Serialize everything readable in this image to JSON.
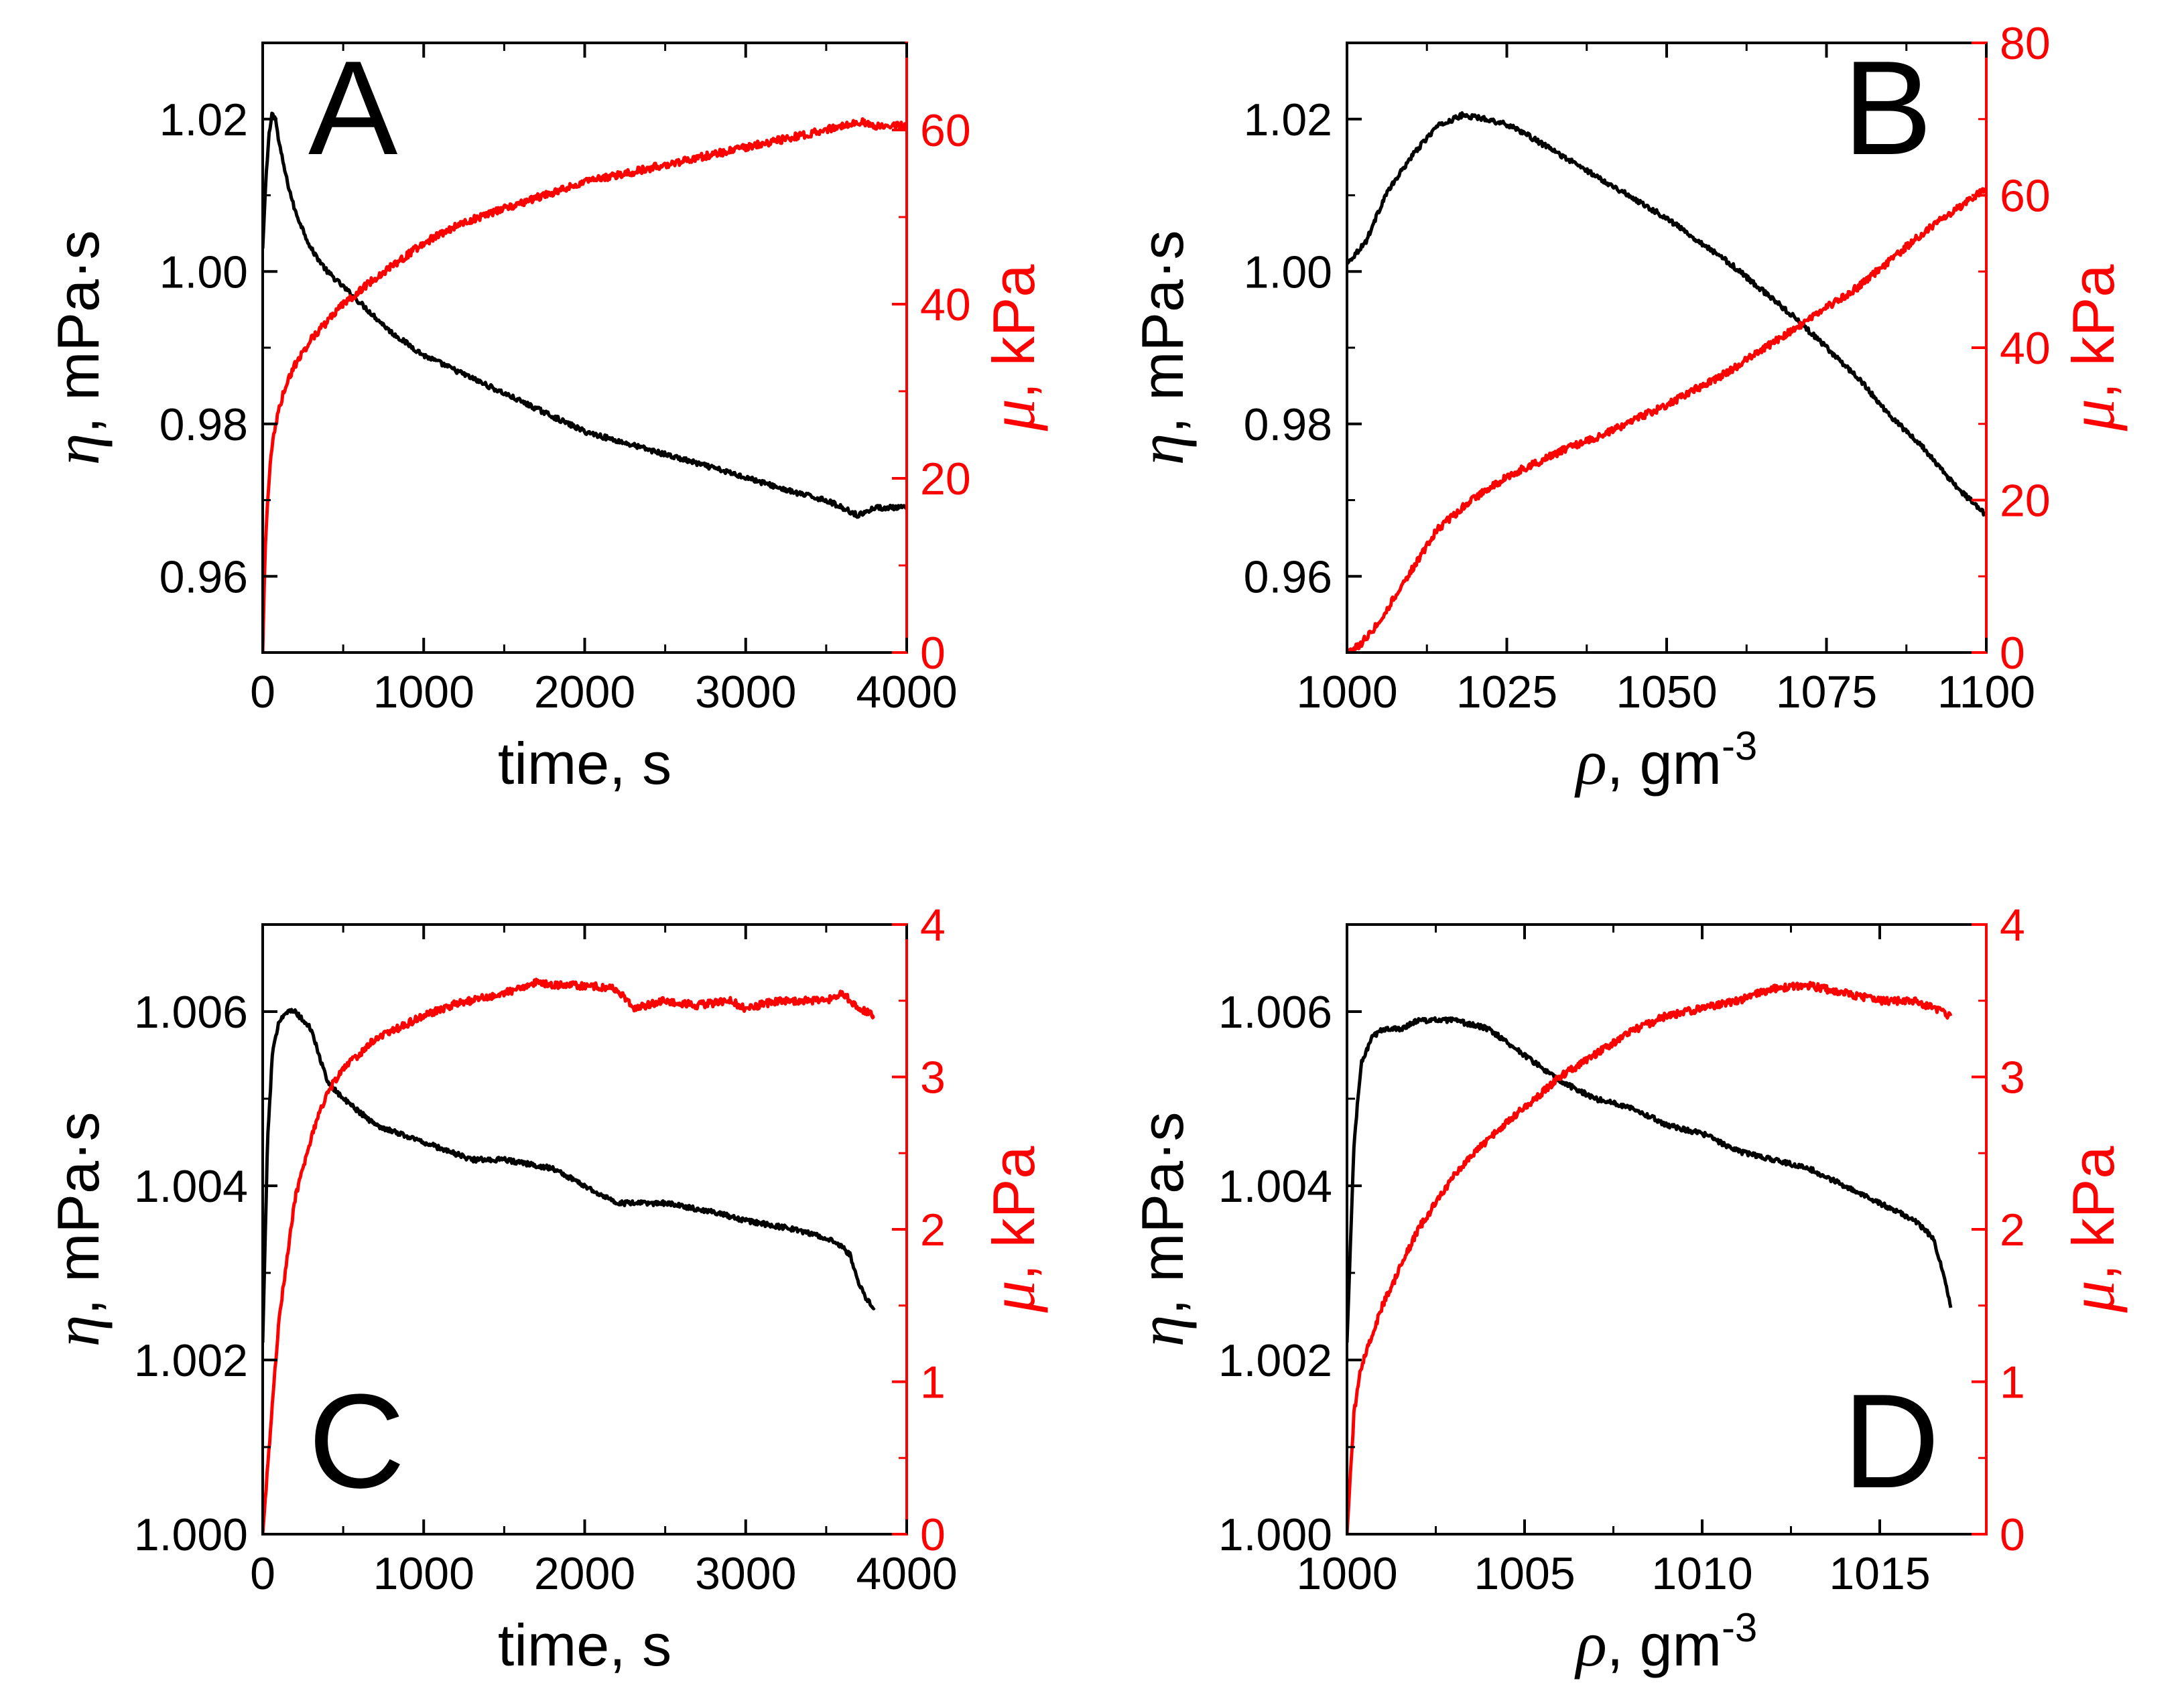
{
  "colors": {
    "eta": "#000000",
    "mu": "#ff0000",
    "axis": "#000000"
  },
  "chart_data": [
    {
      "panel": "A",
      "type": "line",
      "xlabel": "time, s",
      "x_range": [
        0,
        4000
      ],
      "x_ticks": [
        0,
        1000,
        2000,
        3000,
        4000
      ],
      "x_tick_labels": [
        "0",
        "1000",
        "2000",
        "3000",
        "4000"
      ],
      "left_axis": {
        "symbol": "η",
        "unit": ", mPa·s",
        "range": [
          0.95,
          1.03
        ],
        "ticks": [
          0.96,
          0.98,
          1.0,
          1.02
        ],
        "tick_labels": [
          "0.96",
          "0.98",
          "1.00",
          "1.02"
        ]
      },
      "right_axis": {
        "symbol": "μ",
        "unit": ", kPa",
        "range": [
          0,
          70
        ],
        "ticks": [
          0,
          20,
          40,
          60
        ],
        "tick_labels": [
          "0",
          "20",
          "40",
          "60"
        ]
      },
      "series": [
        {
          "axis": "left",
          "color": "#000000",
          "x": [
            0,
            20,
            40,
            60,
            80,
            100,
            150,
            200,
            300,
            400,
            500,
            600,
            800,
            1000,
            1200,
            1500,
            1800,
            2000,
            2500,
            3000,
            3300,
            3500,
            3600,
            3700,
            3800,
            4000
          ],
          "y": [
            1.003,
            1.012,
            1.018,
            1.021,
            1.02,
            1.017,
            1.012,
            1.008,
            1.003,
            1.0,
            0.998,
            0.996,
            0.992,
            0.989,
            0.987,
            0.984,
            0.981,
            0.979,
            0.976,
            0.973,
            0.971,
            0.97,
            0.969,
            0.968,
            0.969,
            0.969
          ]
        },
        {
          "axis": "right",
          "color": "#ff0000",
          "x": [
            0,
            10,
            20,
            40,
            60,
            100,
            150,
            200,
            300,
            400,
            500,
            700,
            1000,
            1200,
            1500,
            2000,
            2500,
            3000,
            3500,
            3700,
            3800,
            4000
          ],
          "y": [
            0,
            8,
            14,
            20,
            24,
            28,
            31,
            33,
            36,
            38,
            40,
            43,
            47,
            49,
            51,
            54,
            56,
            58,
            60,
            61,
            60.5,
            60.5
          ]
        }
      ]
    },
    {
      "panel": "B",
      "type": "line",
      "xlabel_symbol": "ρ",
      "xlabel_unit": ", gm",
      "xlabel_exp": "-3",
      "x_range": [
        1000,
        1100
      ],
      "x_ticks": [
        1000,
        1025,
        1050,
        1075,
        1100
      ],
      "x_tick_labels": [
        "1000",
        "1025",
        "1050",
        "1075",
        "1100"
      ],
      "left_axis": {
        "symbol": "η",
        "unit": ", mPa·s",
        "range": [
          0.95,
          1.03
        ],
        "ticks": [
          0.96,
          0.98,
          1.0,
          1.02
        ],
        "tick_labels": [
          "0.96",
          "0.98",
          "1.00",
          "1.02"
        ]
      },
      "right_axis": {
        "symbol": "μ",
        "unit": ", kPa",
        "range": [
          0,
          80
        ],
        "ticks": [
          0,
          20,
          40,
          60,
          80
        ],
        "tick_labels": [
          "0",
          "20",
          "40",
          "60",
          "80"
        ]
      },
      "series": [
        {
          "axis": "left",
          "color": "#000000",
          "x": [
            1000,
            1003,
            1006,
            1010,
            1014,
            1018,
            1022,
            1026,
            1030,
            1040,
            1050,
            1060,
            1070,
            1075,
            1080,
            1085,
            1090,
            1095,
            1100
          ],
          "y": [
            1.001,
            1.004,
            1.01,
            1.015,
            1.019,
            1.0205,
            1.02,
            1.019,
            1.017,
            1.012,
            1.007,
            1.001,
            0.994,
            0.99,
            0.986,
            0.981,
            0.977,
            0.972,
            0.968
          ]
        },
        {
          "axis": "right",
          "color": "#ff0000",
          "x": [
            1000,
            1002,
            1005,
            1008,
            1011,
            1014,
            1018,
            1022,
            1026,
            1030,
            1035,
            1040,
            1050,
            1060,
            1070,
            1080,
            1090,
            1100
          ],
          "y": [
            0,
            1,
            4,
            8,
            12,
            16,
            19,
            21.5,
            23.5,
            25,
            27,
            28.5,
            32.5,
            37,
            42.5,
            48,
            55,
            61
          ]
        }
      ]
    },
    {
      "panel": "C",
      "type": "line",
      "xlabel": "time, s",
      "x_range": [
        0,
        4000
      ],
      "x_ticks": [
        0,
        1000,
        2000,
        3000,
        4000
      ],
      "x_tick_labels": [
        "0",
        "1000",
        "2000",
        "3000",
        "4000"
      ],
      "left_axis": {
        "symbol": "η",
        "unit": ", mPa·s",
        "range": [
          1.0,
          1.007
        ],
        "ticks": [
          1.0,
          1.002,
          1.004,
          1.006
        ],
        "tick_labels": [
          "1.000",
          "1.002",
          "1.004",
          "1.006"
        ]
      },
      "right_axis": {
        "symbol": "μ",
        "unit": ", kPa",
        "range": [
          0,
          4
        ],
        "ticks": [
          0,
          1,
          2,
          3,
          4
        ],
        "tick_labels": [
          "0",
          "1",
          "2",
          "3",
          "4"
        ]
      },
      "series": [
        {
          "axis": "left",
          "color": "#000000",
          "x": [
            0,
            30,
            60,
            100,
            150,
            200,
            250,
            300,
            350,
            400,
            500,
            700,
            1000,
            1300,
            1500,
            1800,
            2000,
            2200,
            2500,
            2800,
            3000,
            3300,
            3500,
            3600,
            3650,
            3700,
            3750,
            3800
          ],
          "y": [
            1.0022,
            1.0045,
            1.0055,
            1.0059,
            1.006,
            1.006,
            1.0059,
            1.0058,
            1.0055,
            1.0052,
            1.005,
            1.0047,
            1.0045,
            1.0043,
            1.0043,
            1.0042,
            1.004,
            1.0038,
            1.0038,
            1.0037,
            1.0036,
            1.0035,
            1.0034,
            1.0033,
            1.0032,
            1.0029,
            1.0027,
            1.0026
          ]
        },
        {
          "axis": "right",
          "color": "#ff0000",
          "x": [
            0,
            50,
            100,
            150,
            200,
            300,
            400,
            500,
            600,
            700,
            800,
            1000,
            1200,
            1500,
            1700,
            1800,
            2000,
            2200,
            2300,
            2500,
            2700,
            2900,
            3000,
            3200,
            3500,
            3600,
            3700,
            3800
          ],
          "y": [
            0,
            0.7,
            1.4,
            1.8,
            2.2,
            2.6,
            2.9,
            3.05,
            3.15,
            3.25,
            3.3,
            3.4,
            3.48,
            3.55,
            3.62,
            3.6,
            3.6,
            3.58,
            3.45,
            3.5,
            3.47,
            3.5,
            3.45,
            3.5,
            3.5,
            3.55,
            3.45,
            3.4
          ]
        }
      ]
    },
    {
      "panel": "D",
      "type": "line",
      "xlabel_symbol": "ρ",
      "xlabel_unit": ", gm",
      "xlabel_exp": "-3",
      "x_range": [
        1000,
        1018
      ],
      "x_ticks": [
        1000,
        1005,
        1010,
        1015
      ],
      "x_tick_labels": [
        "1000",
        "1005",
        "1010",
        "1015"
      ],
      "left_axis": {
        "symbol": "η",
        "unit": ", mPa·s",
        "range": [
          1.0,
          1.007
        ],
        "ticks": [
          1.0,
          1.002,
          1.004,
          1.006
        ],
        "tick_labels": [
          "1.000",
          "1.002",
          "1.004",
          "1.006"
        ]
      },
      "right_axis": {
        "symbol": "μ",
        "unit": ", kPa",
        "range": [
          0,
          4
        ],
        "ticks": [
          0,
          1,
          2,
          3,
          4
        ],
        "tick_labels": [
          "0",
          "1",
          "2",
          "3",
          "4"
        ]
      },
      "series": [
        {
          "axis": "left",
          "color": "#000000",
          "x": [
            1000,
            1000.2,
            1000.4,
            1000.7,
            1001,
            1001.5,
            1002,
            1003,
            1004,
            1005,
            1006,
            1007,
            1008,
            1009,
            1010,
            1011,
            1012,
            1013,
            1014,
            1015,
            1016,
            1016.5,
            1016.8,
            1017
          ],
          "y": [
            1.0022,
            1.0045,
            1.0054,
            1.0057,
            1.0058,
            1.0058,
            1.0059,
            1.0059,
            1.0058,
            1.0055,
            1.0052,
            1.005,
            1.0049,
            1.0047,
            1.0046,
            1.0044,
            1.0043,
            1.0042,
            1.004,
            1.0038,
            1.0036,
            1.0034,
            1.003,
            1.0026
          ]
        },
        {
          "axis": "right",
          "color": "#ff0000",
          "x": [
            1000,
            1000.1,
            1000.2,
            1000.4,
            1000.7,
            1001,
            1002,
            1003,
            1004,
            1005,
            1006,
            1007,
            1008,
            1009,
            1010,
            1011,
            1012,
            1013,
            1014,
            1015,
            1016,
            1016.5,
            1017
          ],
          "y": [
            0,
            0.4,
            0.8,
            1.1,
            1.3,
            1.5,
            2.0,
            2.35,
            2.6,
            2.8,
            3.0,
            3.15,
            3.3,
            3.4,
            3.45,
            3.5,
            3.58,
            3.6,
            3.55,
            3.5,
            3.5,
            3.45,
            3.4
          ]
        }
      ]
    }
  ]
}
